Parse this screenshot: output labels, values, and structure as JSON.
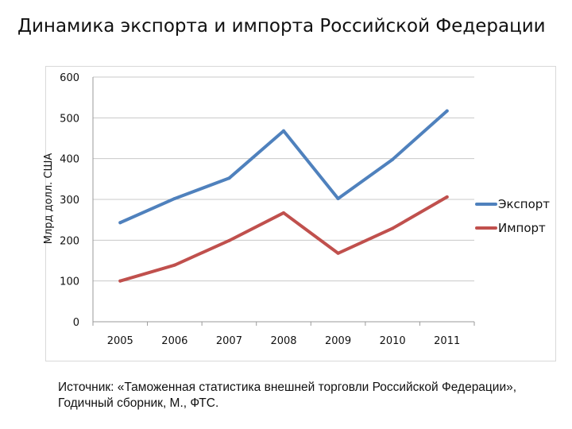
{
  "title": "Динамика экспорта и импорта Российской Федерации",
  "source": "Источник: «Таможенная статистика внешней торговли Российской Федерации», Годичный сборник, М., ФТС.",
  "chart_data": {
    "type": "line",
    "title": "",
    "xlabel": "",
    "ylabel": "Млрд долл. США",
    "x": [
      "2005",
      "2006",
      "2007",
      "2008",
      "2009",
      "2010",
      "2011"
    ],
    "ylim": [
      0,
      600
    ],
    "yticks": [
      0,
      100,
      200,
      300,
      400,
      500,
      600
    ],
    "grid": true,
    "legend_position": "right",
    "series": [
      {
        "name": "Экспорт",
        "color": "#4f81bd",
        "values": [
          243,
          302,
          352,
          468,
          302,
          398,
          517
        ]
      },
      {
        "name": "Импорт",
        "color": "#c0504d",
        "values": [
          100,
          139,
          199,
          267,
          168,
          229,
          306
        ]
      }
    ]
  }
}
